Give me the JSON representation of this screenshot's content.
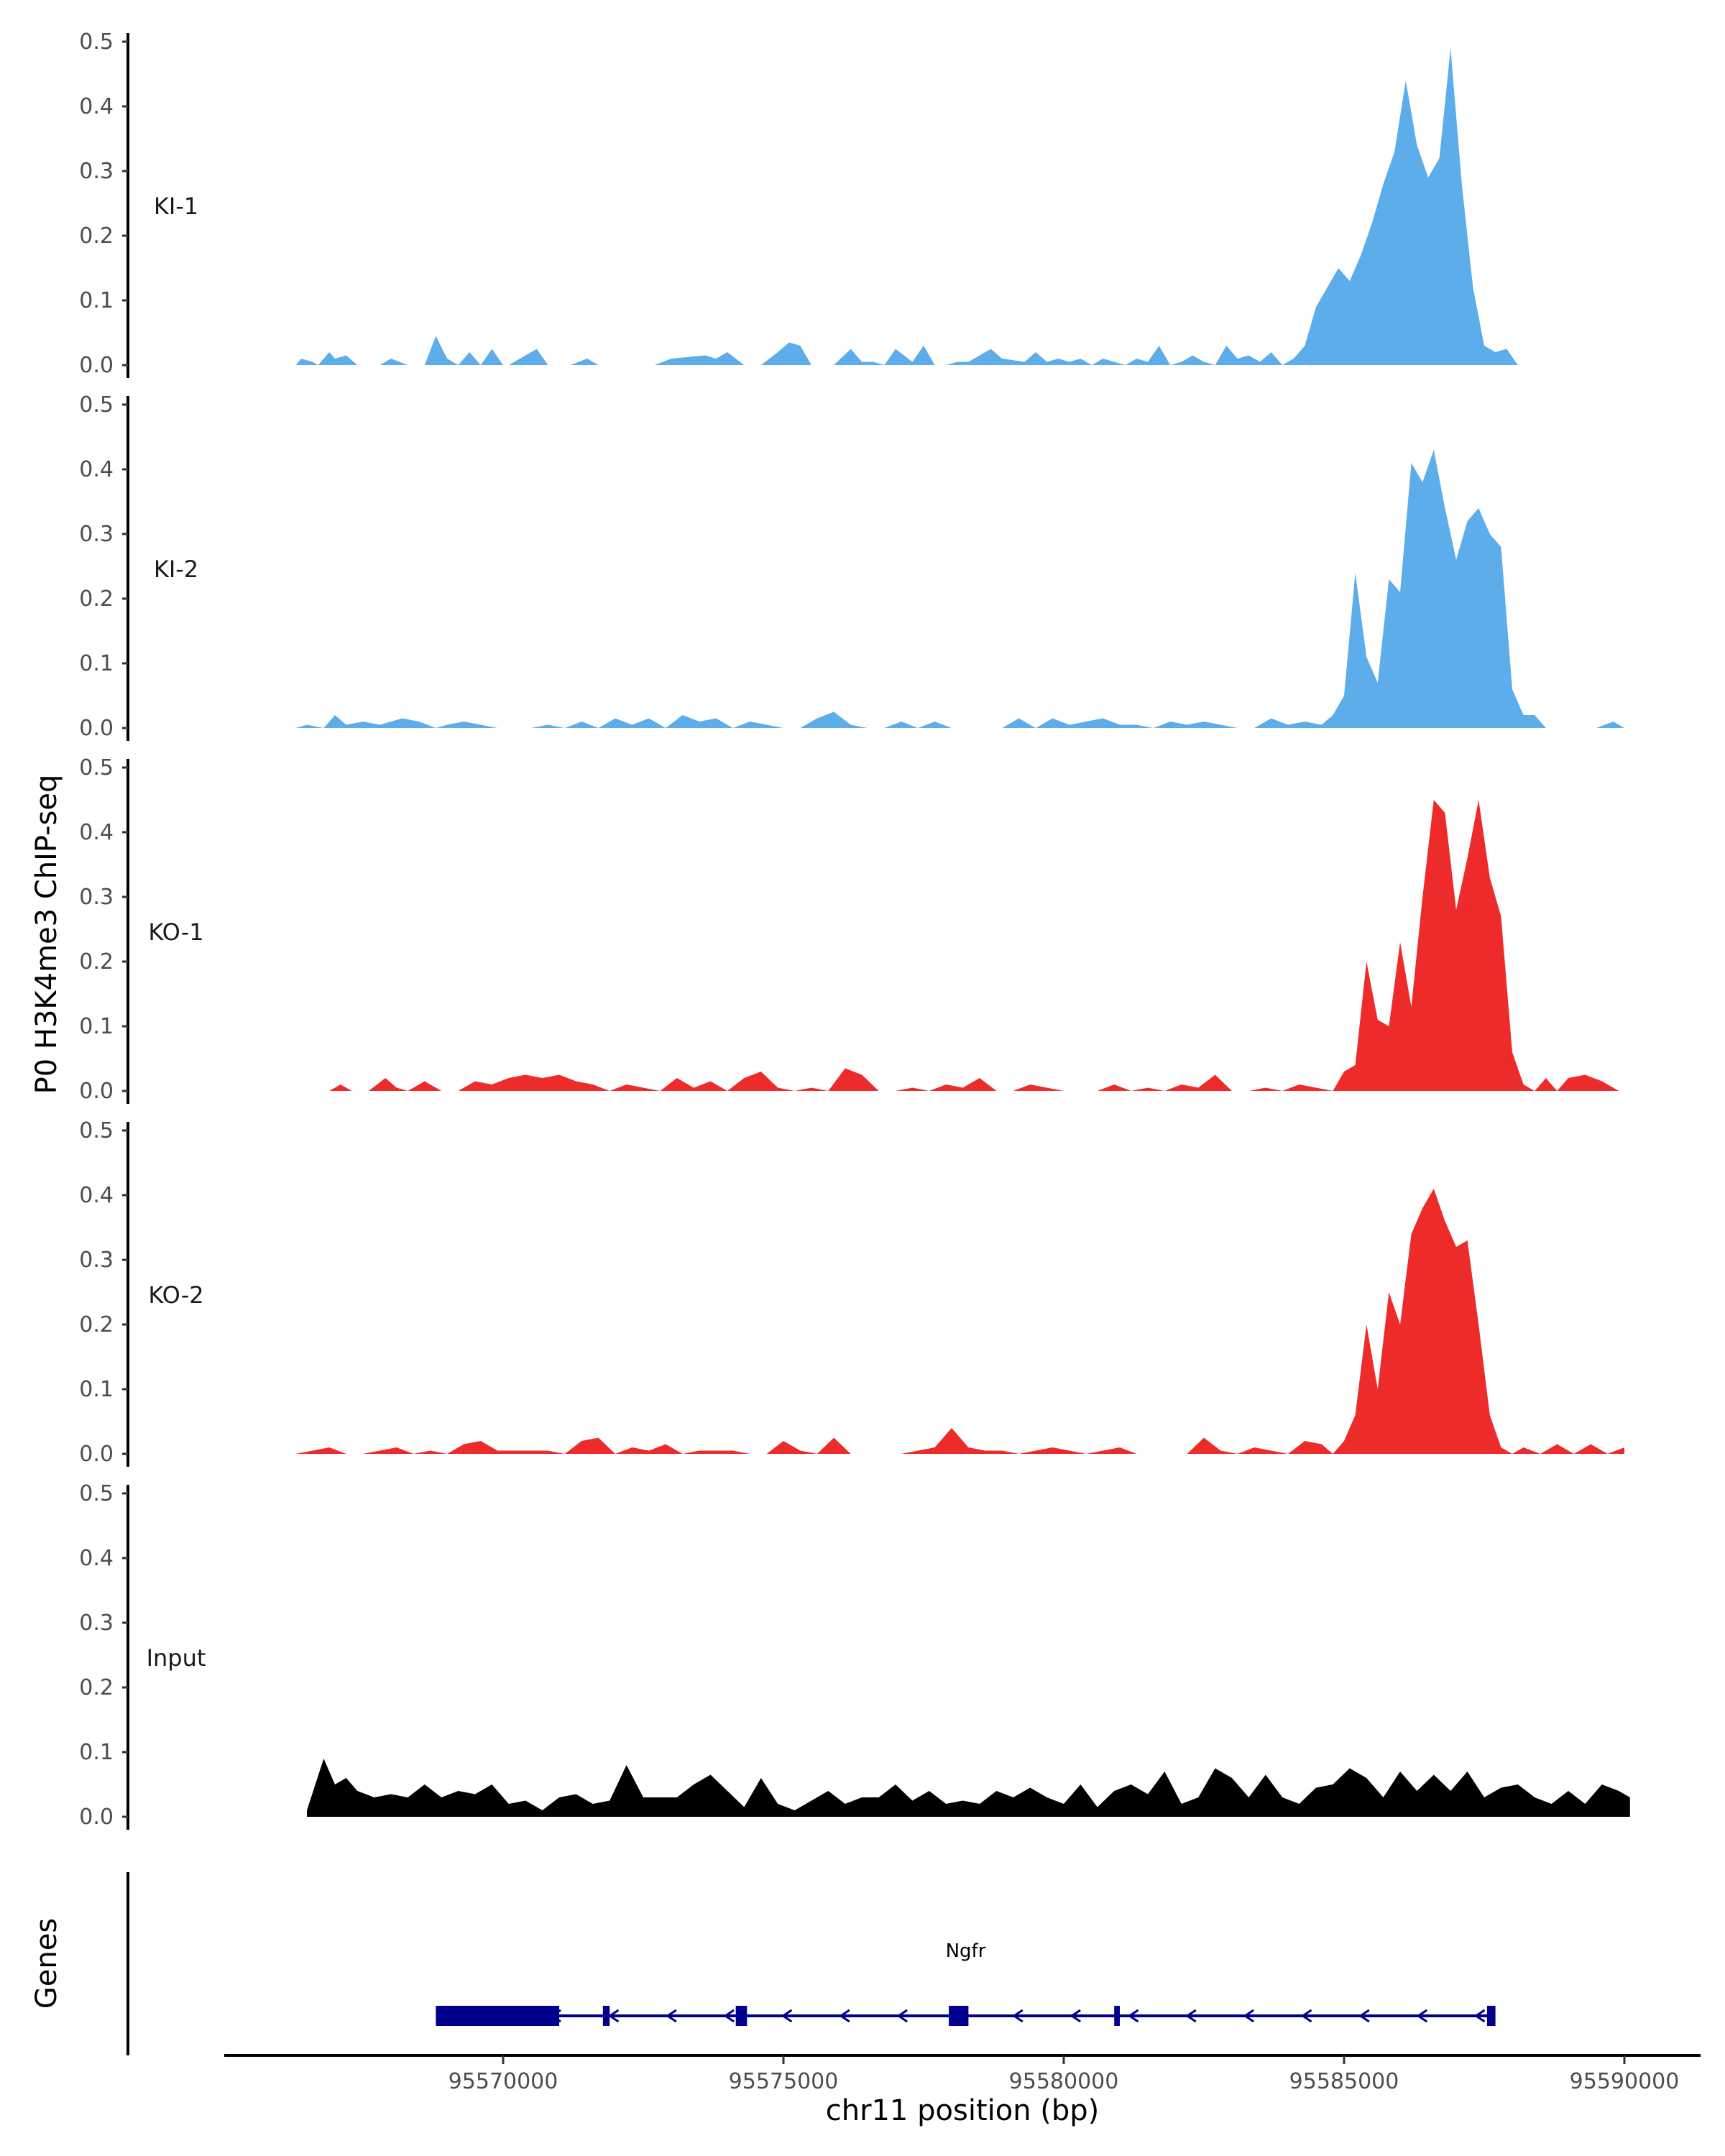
{
  "chart_data": {
    "type": "area",
    "title": "",
    "ylabel": "P0 H3K4me3 ChIP-seq",
    "xlabel": "chr11 position (bp)",
    "xlim": [
      95565000,
      95591200
    ],
    "ylim": [
      0,
      0.5
    ],
    "y_ticks": [
      0.0,
      0.1,
      0.2,
      0.3,
      0.4,
      0.5
    ],
    "y_tick_labels": [
      "0.0",
      "0.1",
      "0.2",
      "0.3",
      "0.4",
      "0.5"
    ],
    "x_ticks": [
      95570000,
      95575000,
      95580000,
      95585000,
      95590000
    ],
    "x_tick_labels": [
      "95570000",
      "95575000",
      "95580000",
      "95585000",
      "95590000"
    ],
    "colors": {
      "KI": "#5DADEB",
      "KO": "#EE2B2B",
      "Input": "#000000",
      "gene": "#00008B",
      "axis": "#000000"
    },
    "tracks": [
      {
        "name": "KI-1",
        "color": "#5DADEB",
        "x": [
          95566300,
          95566400,
          95566600,
          95566700,
          95566900,
          95567000,
          95567200,
          95567400,
          95567800,
          95568000,
          95568300,
          95568600,
          95568800,
          95569000,
          95569200,
          95569400,
          95569600,
          95569800,
          95570000,
          95570100,
          95570300,
          95570600,
          95570800,
          95571200,
          95571500,
          95571700,
          95571900,
          95572200,
          95572500,
          95572700,
          95573000,
          95573600,
          95573800,
          95574000,
          95574300,
          95574600,
          95574900,
          95575100,
          95575300,
          95575500,
          95575700,
          95575900,
          95576200,
          95576400,
          95576600,
          95576800,
          95577000,
          95577300,
          95577500,
          95577700,
          95577900,
          95578100,
          95578300,
          95578500,
          95578700,
          95578900,
          95579300,
          95579500,
          95579700,
          95579900,
          95580100,
          95580300,
          95580500,
          95580700,
          95580900,
          95581100,
          95581300,
          95581500,
          95581700,
          95581900,
          95582100,
          95582300,
          95582500,
          95582700,
          95582900,
          95583100,
          95583300,
          95583500,
          95583700,
          95583900,
          95584100,
          95584300,
          95584500,
          95584700,
          95584900,
          95585100,
          95585300,
          95585500,
          95585700,
          95585900,
          95586100,
          95586300,
          95586500,
          95586700,
          95586900,
          95587100,
          95587300,
          95587500,
          95587700,
          95587900,
          95588100,
          95588300,
          95588500,
          95588700
        ],
        "y": [
          0.0,
          0.01,
          0.005,
          0.0,
          0.02,
          0.01,
          0.015,
          0.0,
          0.0,
          0.01,
          0.0,
          0.0,
          0.045,
          0.01,
          0.0,
          0.02,
          0.0,
          0.025,
          0.0,
          0.0,
          0.01,
          0.025,
          0.0,
          0.0,
          0.01,
          0.0,
          0.0,
          0.0,
          0.0,
          0.0,
          0.01,
          0.015,
          0.01,
          0.02,
          0.0,
          0.0,
          0.02,
          0.035,
          0.03,
          0.0,
          0.0,
          0.0,
          0.025,
          0.005,
          0.005,
          0.0,
          0.025,
          0.005,
          0.03,
          0.0,
          0.0,
          0.005,
          0.005,
          0.015,
          0.025,
          0.01,
          0.005,
          0.02,
          0.005,
          0.01,
          0.005,
          0.01,
          0.0,
          0.01,
          0.005,
          0.0,
          0.01,
          0.005,
          0.03,
          0.0,
          0.005,
          0.015,
          0.005,
          0.0,
          0.03,
          0.01,
          0.015,
          0.005,
          0.02,
          0.0,
          0.01,
          0.03,
          0.09,
          0.12,
          0.15,
          0.13,
          0.17,
          0.22,
          0.28,
          0.33,
          0.44,
          0.34,
          0.29,
          0.32,
          0.49,
          0.28,
          0.12,
          0.03,
          0.02,
          0.025,
          0.0,
          0.0,
          0.0,
          0.0
        ],
        "y_dummy_note": ""
      },
      {
        "name": "KI-2",
        "color": "#5DADEB",
        "x": [
          95566300,
          95566500,
          95566800,
          95567000,
          95567200,
          95567500,
          95567800,
          95568000,
          95568200,
          95568500,
          95568800,
          95569000,
          95569300,
          95569600,
          95569900,
          95570200,
          95570500,
          95570800,
          95571100,
          95571400,
          95571700,
          95572000,
          95572300,
          95572600,
          95572900,
          95573200,
          95573500,
          95573800,
          95574100,
          95574400,
          95574700,
          95575000,
          95575300,
          95575600,
          95575900,
          95576200,
          95576500,
          95576800,
          95577100,
          95577400,
          95577700,
          95578000,
          95578300,
          95578600,
          95578900,
          95579200,
          95579500,
          95579800,
          95580100,
          95580400,
          95580700,
          95581000,
          95581300,
          95581600,
          95581900,
          95582200,
          95582500,
          95582800,
          95583100,
          95583400,
          95583700,
          95584000,
          95584300,
          95584600,
          95584800,
          95585000,
          95585200,
          95585400,
          95585600,
          95585800,
          95586000,
          95586200,
          95586400,
          95586600,
          95586800,
          95587000,
          95587200,
          95587400,
          95587600,
          95587800,
          95588000,
          95588200,
          95588400,
          95588600,
          95588900,
          95589200,
          95589500,
          95589800,
          95590000
        ],
        "y": [
          0.0,
          0.005,
          0.0,
          0.02,
          0.005,
          0.01,
          0.005,
          0.01,
          0.015,
          0.01,
          0.0,
          0.005,
          0.01,
          0.005,
          0.0,
          0.0,
          0.0,
          0.005,
          0.0,
          0.01,
          0.0,
          0.015,
          0.005,
          0.015,
          0.0,
          0.02,
          0.01,
          0.015,
          0.0,
          0.01,
          0.005,
          0.0,
          0.0,
          0.015,
          0.025,
          0.005,
          0.0,
          0.0,
          0.01,
          0.0,
          0.01,
          0.0,
          0.0,
          0.0,
          0.0,
          0.015,
          0.0,
          0.015,
          0.005,
          0.01,
          0.015,
          0.005,
          0.005,
          0.0,
          0.01,
          0.005,
          0.01,
          0.005,
          0.0,
          0.0,
          0.015,
          0.005,
          0.01,
          0.005,
          0.02,
          0.05,
          0.24,
          0.11,
          0.07,
          0.23,
          0.21,
          0.41,
          0.38,
          0.43,
          0.34,
          0.26,
          0.32,
          0.34,
          0.3,
          0.28,
          0.06,
          0.02,
          0.02,
          0.0,
          0.0,
          0.0,
          0.0,
          0.01,
          0.0
        ],
        "y_dummy_note": ""
      },
      {
        "name": "KO-1",
        "color": "#EE2B2B",
        "x": [
          95566900,
          95567100,
          95567300,
          95567600,
          95567900,
          95568100,
          95568300,
          95568600,
          95568900,
          95569200,
          95569500,
          95569800,
          95570100,
          95570400,
          95570700,
          95571000,
          95571300,
          95571600,
          95571900,
          95572200,
          95572500,
          95572800,
          95573100,
          95573400,
          95573700,
          95574000,
          95574300,
          95574600,
          95574900,
          95575200,
          95575500,
          95575800,
          95576100,
          95576400,
          95576700,
          95577000,
          95577300,
          95577600,
          95577900,
          95578200,
          95578500,
          95578800,
          95579100,
          95579400,
          95579700,
          95580000,
          95580300,
          95580600,
          95580900,
          95581200,
          95581500,
          95581800,
          95582100,
          95582400,
          95582700,
          95583000,
          95583300,
          95583600,
          95583900,
          95584200,
          95584500,
          95584800,
          95585000,
          95585200,
          95585400,
          95585600,
          95585800,
          95586000,
          95586200,
          95586400,
          95586600,
          95586800,
          95587000,
          95587200,
          95587400,
          95587600,
          95587800,
          95588000,
          95588200,
          95588400,
          95588600,
          95588800,
          95589000,
          95589300,
          95589600,
          95589900
        ],
        "y": [
          0.0,
          0.01,
          0.0,
          0.0,
          0.02,
          0.005,
          0.0,
          0.015,
          0.0,
          0.0,
          0.015,
          0.01,
          0.02,
          0.025,
          0.02,
          0.025,
          0.015,
          0.01,
          0.0,
          0.01,
          0.005,
          0.0,
          0.02,
          0.005,
          0.015,
          0.0,
          0.02,
          0.03,
          0.005,
          0.0,
          0.005,
          0.0,
          0.035,
          0.025,
          0.0,
          0.0,
          0.005,
          0.0,
          0.01,
          0.005,
          0.02,
          0.0,
          0.0,
          0.01,
          0.005,
          0.0,
          0.0,
          0.0,
          0.01,
          0.0,
          0.005,
          0.0,
          0.01,
          0.005,
          0.025,
          0.0,
          0.0,
          0.005,
          0.0,
          0.01,
          0.005,
          0.0,
          0.03,
          0.04,
          0.2,
          0.11,
          0.1,
          0.23,
          0.13,
          0.3,
          0.45,
          0.43,
          0.28,
          0.36,
          0.45,
          0.33,
          0.27,
          0.06,
          0.01,
          0.0,
          0.02,
          0.0,
          0.02,
          0.025,
          0.015,
          0.0
        ],
        "y_dummy_note": ""
      },
      {
        "name": "KO-2",
        "color": "#EE2B2B",
        "x": [
          95566300,
          95566600,
          95566900,
          95567200,
          95567500,
          95567800,
          95568100,
          95568400,
          95568700,
          95569000,
          95569300,
          95569600,
          95569900,
          95570200,
          95570500,
          95570800,
          95571100,
          95571400,
          95571700,
          95572000,
          95572300,
          95572600,
          95572900,
          95573200,
          95573500,
          95573800,
          95574100,
          95574400,
          95574700,
          95575000,
          95575300,
          95575600,
          95575900,
          95576200,
          95576500,
          95576800,
          95577100,
          95577400,
          95577700,
          95578000,
          95578300,
          95578600,
          95578900,
          95579200,
          95579500,
          95579800,
          95580100,
          95580400,
          95580700,
          95581000,
          95581300,
          95581600,
          95581900,
          95582200,
          95582500,
          95582800,
          95583100,
          95583400,
          95583700,
          95584000,
          95584300,
          95584600,
          95584800,
          95585000,
          95585200,
          95585400,
          95585600,
          95585800,
          95586000,
          95586200,
          95586400,
          95586600,
          95586800,
          95587000,
          95587200,
          95587400,
          95587600,
          95587800,
          95588000,
          95588200,
          95588500,
          95588800,
          95589100,
          95589400,
          95589700,
          95590000
        ],
        "y": [
          0.0,
          0.005,
          0.01,
          0.0,
          0.0,
          0.005,
          0.01,
          0.0,
          0.005,
          0.0,
          0.015,
          0.02,
          0.005,
          0.005,
          0.005,
          0.005,
          0.0,
          0.02,
          0.025,
          0.0,
          0.01,
          0.005,
          0.015,
          0.0,
          0.005,
          0.005,
          0.005,
          0.0,
          0.0,
          0.02,
          0.005,
          0.0,
          0.025,
          0.0,
          0.0,
          0.0,
          0.0,
          0.005,
          0.01,
          0.04,
          0.01,
          0.005,
          0.005,
          0.0,
          0.005,
          0.01,
          0.005,
          0.0,
          0.005,
          0.01,
          0.0,
          0.0,
          0.0,
          0.0,
          0.025,
          0.005,
          0.0,
          0.01,
          0.005,
          0.0,
          0.02,
          0.015,
          0.0,
          0.02,
          0.06,
          0.2,
          0.1,
          0.25,
          0.2,
          0.34,
          0.38,
          0.41,
          0.36,
          0.32,
          0.33,
          0.2,
          0.06,
          0.01,
          0.0,
          0.01,
          0.0,
          0.015,
          0.0,
          0.015,
          0.0,
          0.01
        ],
        "y_dummy_note": ""
      },
      {
        "name": "Input",
        "color": "#000000",
        "x": [
          95566500,
          95566800,
          95567000,
          95567200,
          95567400,
          95567700,
          95568000,
          95568300,
          95568600,
          95568900,
          95569200,
          95569500,
          95569800,
          95570100,
          95570400,
          95570700,
          95571000,
          95571300,
          95571600,
          95571900,
          95572200,
          95572500,
          95572800,
          95573100,
          95573400,
          95573700,
          95574000,
          95574300,
          95574600,
          95574900,
          95575200,
          95575500,
          95575800,
          95576100,
          95576400,
          95576700,
          95577000,
          95577300,
          95577600,
          95577900,
          95578200,
          95578500,
          95578800,
          95579100,
          95579400,
          95579700,
          95580000,
          95580300,
          95580600,
          95580900,
          95581200,
          95581500,
          95581800,
          95582100,
          95582400,
          95582700,
          95583000,
          95583300,
          95583600,
          95583900,
          95584200,
          95584500,
          95584800,
          95585100,
          95585400,
          95585700,
          95586000,
          95586300,
          95586600,
          95586900,
          95587200,
          95587500,
          95587800,
          95588100,
          95588400,
          95588700,
          95589000,
          95589300,
          95589600,
          95589900,
          95590100
        ],
        "y": [
          0.01,
          0.09,
          0.05,
          0.06,
          0.04,
          0.03,
          0.035,
          0.03,
          0.05,
          0.03,
          0.04,
          0.035,
          0.05,
          0.02,
          0.025,
          0.01,
          0.03,
          0.035,
          0.02,
          0.025,
          0.08,
          0.03,
          0.03,
          0.03,
          0.05,
          0.065,
          0.04,
          0.015,
          0.06,
          0.02,
          0.01,
          0.025,
          0.04,
          0.02,
          0.03,
          0.03,
          0.05,
          0.025,
          0.04,
          0.02,
          0.025,
          0.02,
          0.04,
          0.03,
          0.045,
          0.03,
          0.02,
          0.05,
          0.015,
          0.04,
          0.05,
          0.035,
          0.07,
          0.02,
          0.03,
          0.075,
          0.06,
          0.03,
          0.065,
          0.03,
          0.02,
          0.045,
          0.05,
          0.075,
          0.06,
          0.03,
          0.07,
          0.04,
          0.065,
          0.04,
          0.07,
          0.03,
          0.045,
          0.05,
          0.03,
          0.02,
          0.04,
          0.02,
          0.05,
          0.04,
          0.03
        ],
        "y_dummy_note": ""
      }
    ],
    "genes": {
      "panel_label": "Genes",
      "items": [
        {
          "name": "Ngfr",
          "start": 95568800,
          "end": 95587700,
          "strand": "-",
          "exons": [
            [
              95568800,
              95571000
            ],
            [
              95571780,
              95571900
            ],
            [
              95574150,
              95574350
            ],
            [
              95577950,
              95578300
            ],
            [
              95580900,
              95581000
            ],
            [
              95587550,
              95587700
            ]
          ]
        }
      ]
    }
  }
}
